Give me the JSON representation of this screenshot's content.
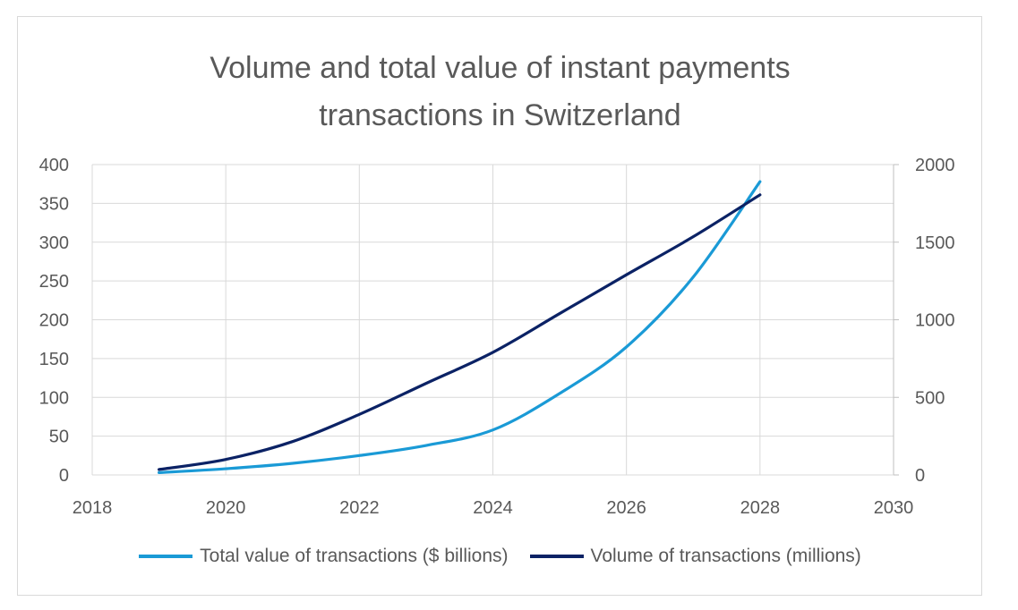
{
  "chart_data": {
    "type": "line",
    "title": [
      "Volume and total value of instant payments",
      "transactions in Switzerland"
    ],
    "xlim": [
      2018,
      2030
    ],
    "x_ticks": [
      "2018",
      "2020",
      "2022",
      "2024",
      "2026",
      "2028",
      "2030"
    ],
    "y_left": {
      "lim": [
        0,
        400
      ],
      "ticks": [
        "0",
        "50",
        "100",
        "150",
        "200",
        "250",
        "300",
        "350",
        "400"
      ]
    },
    "y_right": {
      "lim": [
        0,
        2000
      ],
      "ticks": [
        "0",
        "500",
        "1000",
        "1500",
        "2000"
      ]
    },
    "grid": true,
    "legend_position": "bottom",
    "series": [
      {
        "name": "Total value of transactions ($ billions)",
        "axis": "left",
        "color": "#1a9ad6",
        "x": [
          2019,
          2020,
          2021,
          2022,
          2023,
          2024,
          2025,
          2026,
          2027,
          2028
        ],
        "y": [
          3,
          8,
          15,
          25,
          38,
          58,
          105,
          165,
          255,
          378
        ]
      },
      {
        "name": "Volume of transactions (millions)",
        "axis": "right",
        "color": "#0b2265",
        "x": [
          2019,
          2020,
          2021,
          2022,
          2023,
          2024,
          2025,
          2026,
          2027,
          2028
        ],
        "y": [
          35,
          100,
          215,
          390,
          590,
          790,
          1040,
          1290,
          1535,
          1805
        ]
      }
    ]
  }
}
